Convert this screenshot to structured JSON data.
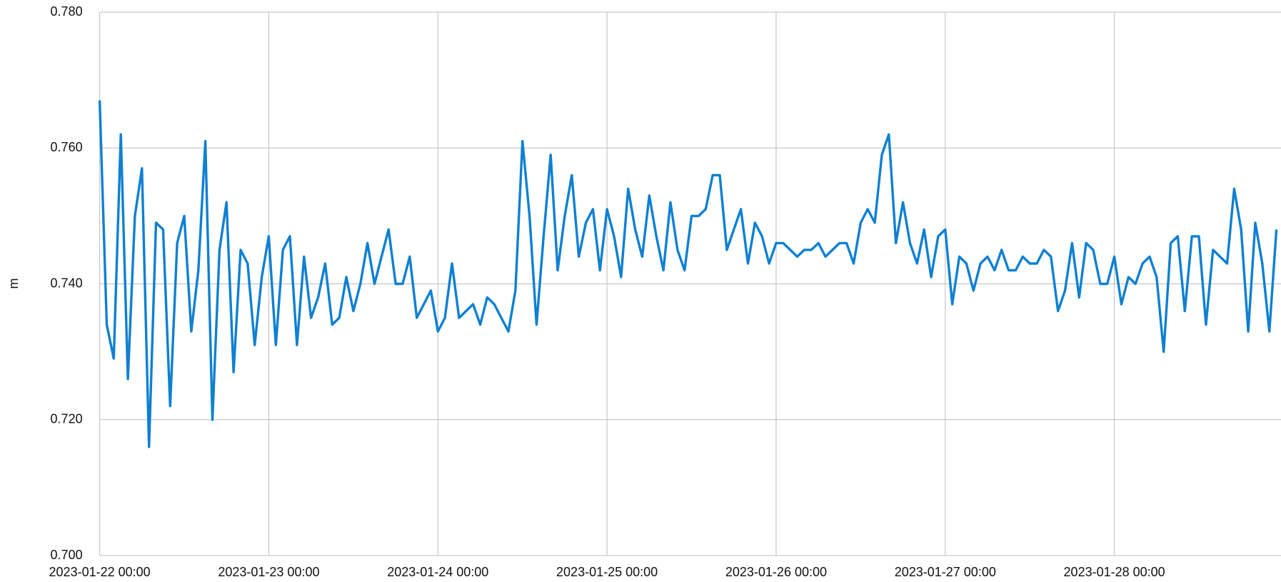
{
  "chart_data": {
    "type": "line",
    "y_label": "m",
    "color": "#0e80d2",
    "grid": true,
    "xlim": [
      "2023-01-22 00:00",
      "2023-01-28 23:39"
    ],
    "xticks": [
      "2023-01-22 00:00",
      "2023-01-23 00:00",
      "2023-01-24 00:00",
      "2023-01-25 00:00",
      "2023-01-26 00:00",
      "2023-01-27 00:00",
      "2023-01-28 00:00"
    ],
    "ylim": [
      0.7,
      0.78
    ],
    "yticks": [
      {
        "value": 0.7,
        "label": "0.700"
      },
      {
        "value": 0.72,
        "label": "0.720"
      },
      {
        "value": 0.74,
        "label": "0.740"
      },
      {
        "value": 0.76,
        "label": "0.760"
      },
      {
        "value": 0.78,
        "label": "0.780"
      }
    ],
    "x": [
      "2023-01-22 00:00",
      "2023-01-22 01:00",
      "2023-01-22 02:00",
      "2023-01-22 03:00",
      "2023-01-22 04:00",
      "2023-01-22 05:00",
      "2023-01-22 06:00",
      "2023-01-22 07:00",
      "2023-01-22 08:00",
      "2023-01-22 09:00",
      "2023-01-22 10:00",
      "2023-01-22 11:00",
      "2023-01-22 12:00",
      "2023-01-22 13:00",
      "2023-01-22 14:00",
      "2023-01-22 15:00",
      "2023-01-22 16:00",
      "2023-01-22 17:00",
      "2023-01-22 18:00",
      "2023-01-22 19:00",
      "2023-01-22 20:00",
      "2023-01-22 21:00",
      "2023-01-22 22:00",
      "2023-01-22 23:00",
      "2023-01-23 00:00",
      "2023-01-23 01:00",
      "2023-01-23 02:00",
      "2023-01-23 03:00",
      "2023-01-23 04:00",
      "2023-01-23 05:00",
      "2023-01-23 06:00",
      "2023-01-23 07:00",
      "2023-01-23 08:00",
      "2023-01-23 09:00",
      "2023-01-23 10:00",
      "2023-01-23 11:00",
      "2023-01-23 12:00",
      "2023-01-23 13:00",
      "2023-01-23 14:00",
      "2023-01-23 15:00",
      "2023-01-23 16:00",
      "2023-01-23 17:00",
      "2023-01-23 18:00",
      "2023-01-23 19:00",
      "2023-01-23 20:00",
      "2023-01-23 21:00",
      "2023-01-23 22:00",
      "2023-01-23 23:00",
      "2023-01-24 00:00",
      "2023-01-24 01:00",
      "2023-01-24 02:00",
      "2023-01-24 03:00",
      "2023-01-24 04:00",
      "2023-01-24 05:00",
      "2023-01-24 06:00",
      "2023-01-24 07:00",
      "2023-01-24 08:00",
      "2023-01-24 09:00",
      "2023-01-24 10:00",
      "2023-01-24 11:00",
      "2023-01-24 12:00",
      "2023-01-24 13:00",
      "2023-01-24 14:00",
      "2023-01-24 15:00",
      "2023-01-24 16:00",
      "2023-01-24 17:00",
      "2023-01-24 18:00",
      "2023-01-24 19:00",
      "2023-01-24 20:00",
      "2023-01-24 21:00",
      "2023-01-24 22:00",
      "2023-01-24 23:00",
      "2023-01-25 00:00",
      "2023-01-25 01:00",
      "2023-01-25 02:00",
      "2023-01-25 03:00",
      "2023-01-25 04:00",
      "2023-01-25 05:00",
      "2023-01-25 06:00",
      "2023-01-25 07:00",
      "2023-01-25 08:00",
      "2023-01-25 09:00",
      "2023-01-25 10:00",
      "2023-01-25 11:00",
      "2023-01-25 12:00",
      "2023-01-25 13:00",
      "2023-01-25 14:00",
      "2023-01-25 15:00",
      "2023-01-25 16:00",
      "2023-01-25 17:00",
      "2023-01-25 18:00",
      "2023-01-25 19:00",
      "2023-01-25 20:00",
      "2023-01-25 21:00",
      "2023-01-25 22:00",
      "2023-01-25 23:00",
      "2023-01-26 00:00",
      "2023-01-26 01:00",
      "2023-01-26 02:00",
      "2023-01-26 03:00",
      "2023-01-26 04:00",
      "2023-01-26 05:00",
      "2023-01-26 06:00",
      "2023-01-26 07:00",
      "2023-01-26 08:00",
      "2023-01-26 09:00",
      "2023-01-26 10:00",
      "2023-01-26 11:00",
      "2023-01-26 12:00",
      "2023-01-26 13:00",
      "2023-01-26 14:00",
      "2023-01-26 15:00",
      "2023-01-26 16:00",
      "2023-01-26 17:00",
      "2023-01-26 18:00",
      "2023-01-26 19:00",
      "2023-01-26 20:00",
      "2023-01-26 21:00",
      "2023-01-26 22:00",
      "2023-01-26 23:00",
      "2023-01-27 00:00",
      "2023-01-27 01:00",
      "2023-01-27 02:00",
      "2023-01-27 03:00",
      "2023-01-27 04:00",
      "2023-01-27 05:00",
      "2023-01-27 06:00",
      "2023-01-27 07:00",
      "2023-01-27 08:00",
      "2023-01-27 09:00",
      "2023-01-27 10:00",
      "2023-01-27 11:00",
      "2023-01-27 12:00",
      "2023-01-27 13:00",
      "2023-01-27 14:00",
      "2023-01-27 15:00",
      "2023-01-27 16:00",
      "2023-01-27 17:00",
      "2023-01-27 18:00",
      "2023-01-27 19:00",
      "2023-01-27 20:00",
      "2023-01-27 21:00",
      "2023-01-27 22:00",
      "2023-01-27 23:00",
      "2023-01-28 00:00",
      "2023-01-28 01:00",
      "2023-01-28 02:00",
      "2023-01-28 03:00",
      "2023-01-28 04:00",
      "2023-01-28 05:00",
      "2023-01-28 06:00",
      "2023-01-28 07:00",
      "2023-01-28 08:00",
      "2023-01-28 09:00",
      "2023-01-28 10:00",
      "2023-01-28 11:00",
      "2023-01-28 12:00",
      "2023-01-28 13:00",
      "2023-01-28 14:00",
      "2023-01-28 15:00",
      "2023-01-28 16:00",
      "2023-01-28 17:00",
      "2023-01-28 18:00",
      "2023-01-28 19:00",
      "2023-01-28 20:00",
      "2023-01-28 21:00",
      "2023-01-28 22:00",
      "2023-01-28 23:00"
    ],
    "values": [
      0.767,
      0.734,
      0.729,
      0.762,
      0.726,
      0.75,
      0.757,
      0.716,
      0.749,
      0.748,
      0.722,
      0.746,
      0.75,
      0.733,
      0.742,
      0.761,
      0.72,
      0.745,
      0.752,
      0.727,
      0.745,
      0.743,
      0.731,
      0.741,
      0.747,
      0.731,
      0.745,
      0.747,
      0.731,
      0.744,
      0.735,
      0.738,
      0.743,
      0.734,
      0.735,
      0.741,
      0.736,
      0.74,
      0.746,
      0.74,
      0.744,
      0.748,
      0.74,
      0.74,
      0.744,
      0.735,
      0.737,
      0.739,
      0.733,
      0.735,
      0.743,
      0.735,
      0.736,
      0.737,
      0.734,
      0.738,
      0.737,
      0.735,
      0.733,
      0.739,
      0.761,
      0.75,
      0.734,
      0.747,
      0.759,
      0.742,
      0.75,
      0.756,
      0.744,
      0.749,
      0.751,
      0.742,
      0.751,
      0.747,
      0.741,
      0.754,
      0.748,
      0.744,
      0.753,
      0.747,
      0.742,
      0.752,
      0.745,
      0.742,
      0.75,
      0.75,
      0.751,
      0.756,
      0.756,
      0.745,
      0.748,
      0.751,
      0.743,
      0.749,
      0.747,
      0.743,
      0.746,
      0.746,
      0.745,
      0.744,
      0.745,
      0.745,
      0.746,
      0.744,
      0.745,
      0.746,
      0.746,
      0.743,
      0.749,
      0.751,
      0.749,
      0.759,
      0.762,
      0.746,
      0.752,
      0.746,
      0.743,
      0.748,
      0.741,
      0.747,
      0.748,
      0.737,
      0.744,
      0.743,
      0.739,
      0.743,
      0.744,
      0.742,
      0.745,
      0.742,
      0.742,
      0.744,
      0.743,
      0.743,
      0.745,
      0.744,
      0.736,
      0.739,
      0.746,
      0.738,
      0.746,
      0.745,
      0.74,
      0.74,
      0.744,
      0.737,
      0.741,
      0.74,
      0.743,
      0.744,
      0.741,
      0.73,
      0.746,
      0.747,
      0.736,
      0.747,
      0.747,
      0.734,
      0.745,
      0.744,
      0.743,
      0.754,
      0.748,
      0.733,
      0.749,
      0.743,
      0.733,
      0.748
    ]
  }
}
